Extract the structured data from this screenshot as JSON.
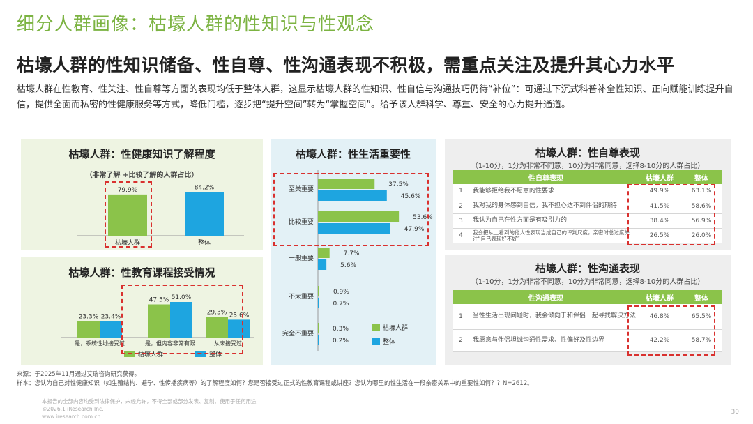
{
  "page": {
    "title": "细分人群画像：枯壕人群的性知识与性观念",
    "headline": "枯壕人群的性知识储备、性自尊、性沟通表现不积极，需重点关注及提升其心力水平",
    "intro": "枯壕人群在性教育、性关注、性自尊等方面的表现均低于整体人群，这显示枯壕人群的性知识、性自信与沟通技巧仍待“补位”：可通过下沉式科普补全性知识、正向赋能训练提升自信，提供全面而私密的性健康服务等方式，降低门槛，逐步把“提升空间”转为“掌握空间”。给予该人群科学、尊重、安全的心力提升通道。",
    "source": "来源：于2025年11月通过艾瑞咨询研究获得。",
    "sample": "样本：您认为自己对性健康知识（如生殖结构、避孕、性传播疾病等）的了解程度如何？您是否接受过正式的性教育课程或讲座？您认为哪里的性生活在一段亲密关系中的重要性如何？？N=2612。",
    "copyright_1": "本报告的全部内容均受到法律保护，未经允许，不得全部或部分发表、复制、使用于任何用途",
    "copyright_2": "©2026.1 iResearch Inc.",
    "copyright_3": "www.iresearch.com.cn",
    "page_number": "30"
  },
  "colors": {
    "green": "#8bc34a",
    "blue": "#1ea5e0",
    "dash": "#d9312f",
    "title_green": "#7cb342"
  },
  "legend": {
    "group": "枯壕人群",
    "overall": "整体"
  },
  "chart_data": [
    {
      "type": "bar",
      "title": "枯壕人群：性健康知识了解程度",
      "subtitle": "（非常了解 +比较了解的人群占比）",
      "categories": [
        "枯壕人群",
        "整体"
      ],
      "values": [
        79.9,
        84.2
      ],
      "labels": [
        "79.9%",
        "84.2%"
      ],
      "ylim": [
        0,
        100
      ]
    },
    {
      "type": "bar",
      "title": "枯壕人群：性教育课程接受情况",
      "categories": [
        "是，系统性地接受过",
        "是，但内容非常有限",
        "从未接受过"
      ],
      "series": [
        {
          "name": "枯壕人群",
          "values": [
            23.3,
            47.5,
            29.3
          ],
          "labels": [
            "23.3%",
            "47.5%",
            "29.3%"
          ]
        },
        {
          "name": "整体",
          "values": [
            23.4,
            51.0,
            25.6
          ],
          "labels": [
            "23.4%",
            "51.0%",
            "25.6%"
          ]
        }
      ],
      "ylim": [
        0,
        60
      ]
    },
    {
      "type": "bar",
      "title": "枯壕人群：性生活重要性",
      "orientation": "horizontal",
      "categories": [
        "至关重要",
        "比较重要",
        "一般重要",
        "不太重要",
        "完全不重要"
      ],
      "series": [
        {
          "name": "枯壕人群",
          "values": [
            37.5,
            53.6,
            7.7,
            0.9,
            0.3
          ],
          "labels": [
            "37.5%",
            "53.6%",
            "7.7%",
            "0.9%",
            "0.3%"
          ]
        },
        {
          "name": "整体",
          "values": [
            45.6,
            47.9,
            5.6,
            0.7,
            0.2
          ],
          "labels": [
            "45.6%",
            "47.9%",
            "5.6%",
            "0.7%",
            "0.2%"
          ]
        }
      ],
      "xlim": [
        0,
        60
      ]
    },
    {
      "type": "table",
      "title": "枯壕人群：性自尊表现",
      "subtitle": "（1-10分，1分为非常不同意，10分为非常同意，选择8-10分的人群占比）",
      "columns": [
        "性自尊表现",
        "枯壕人群",
        "整体"
      ],
      "rows": [
        {
          "idx": "1",
          "item": "我能够拒绝我不愿意的性要求",
          "group": "49.9%",
          "overall": "63.1%"
        },
        {
          "idx": "2",
          "item": "我对我的身体感到自信，我不担心达不到伴侣的期待",
          "group": "41.5%",
          "overall": "58.6%"
        },
        {
          "idx": "3",
          "item": "我认为自己在性方面是有吸引力的",
          "group": "38.4%",
          "overall": "56.9%"
        },
        {
          "idx": "4",
          "item": "我会把从上看到的他人性表现当成自己的评判尺度，亲密时总过度关注“自己表现好不好”",
          "group": "26.5%",
          "overall": "26.0%"
        }
      ]
    },
    {
      "type": "table",
      "title": "枯壕人群：性沟通表现",
      "subtitle": "（1-10分，1分为非常不同意，10分为非常同意，选择8-10分的人群占比）",
      "columns": [
        "性沟通表现",
        "枯壕人群",
        "整体"
      ],
      "rows": [
        {
          "idx": "1",
          "item": "当性生活出现问题时，我会倾向于和伴侣一起寻找解决方法",
          "group": "46.8%",
          "overall": "65.5%"
        },
        {
          "idx": "2",
          "item": "我愿意与伴侣坦诚沟通性需求、性偏好及性边界",
          "group": "42.2%",
          "overall": "58.7%"
        }
      ]
    }
  ]
}
